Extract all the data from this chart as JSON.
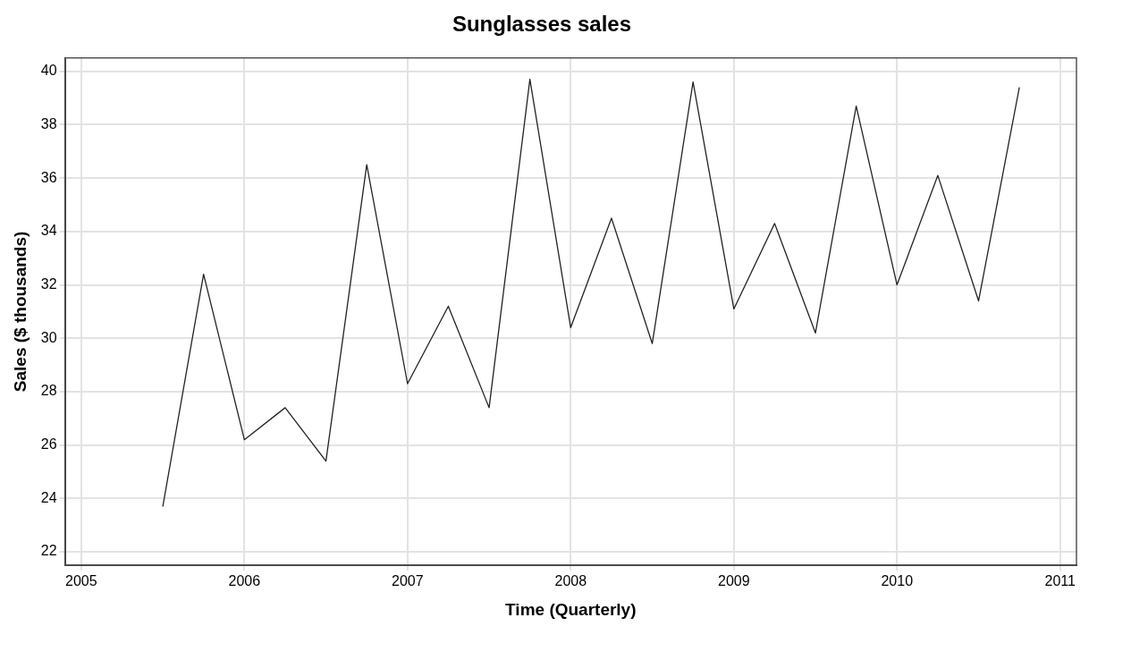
{
  "chart_data": {
    "type": "line",
    "title": "Sunglasses sales",
    "xlabel": "Time (Quarterly)",
    "ylabel": "Sales ($ thousands)",
    "x": [
      2005.5,
      2005.75,
      2006,
      2006.25,
      2006.5,
      2006.75,
      2007,
      2007.25,
      2007.5,
      2007.75,
      2008,
      2008.25,
      2008.5,
      2008.75,
      2009,
      2009.25,
      2009.5,
      2009.75,
      2010,
      2010.25,
      2010.5,
      2010.75
    ],
    "series": [
      {
        "color": "#222222",
        "values": [
          23.7,
          32.4,
          26.2,
          27.4,
          25.4,
          36.5,
          28.3,
          31.2,
          27.4,
          39.7,
          30.4,
          34.5,
          29.8,
          39.6,
          31.1,
          34.3,
          30.2,
          38.7,
          32.0,
          36.1,
          31.4,
          39.4
        ]
      }
    ],
    "xlim": [
      2004.9,
      2011.1
    ],
    "xticks": [
      2005,
      2006,
      2007,
      2008,
      2009,
      2010,
      2011
    ],
    "ylim": [
      21.5,
      40.5
    ],
    "yticks": [
      22,
      24,
      26,
      28,
      30,
      32,
      34,
      36,
      38,
      40
    ],
    "grid": true,
    "legend": false,
    "marker": "none",
    "line_style": "solid"
  }
}
